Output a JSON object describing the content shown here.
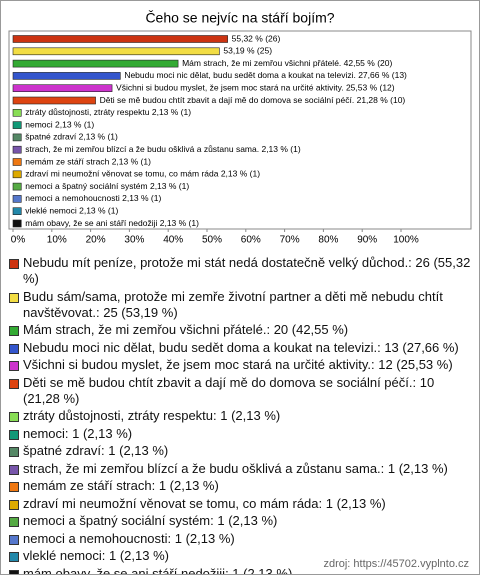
{
  "chart_data": {
    "type": "bar",
    "orientation": "horizontal",
    "title": "Čeho se nejvíc na stáří bojím?",
    "categories": [
      "Nebudu mít peníze, protože mi stát nedá dostatečně velký důchod.",
      "Budu sám/sama, protože mi zemře životní partner a děti mě nebudu chtít navštěvovat.",
      "Mám strach, že mi zemřou všichni přátelé.",
      "Nebudu moci nic dělat, budu sedět doma a koukat na televizi.",
      "Všichni si budou myslet, že jsem moc stará na určité aktivity.",
      "Děti se mě budou chtít zbavit a dají mě do domova se sociální péčí.",
      "ztráty důstojnosti, ztráty respektu",
      "nemoci",
      "špatné zdraví",
      "strach, že mi zemřou blízcí a že budu ošklivá a zůstanu sama.",
      "nemám ze stáří strach",
      "zdraví mi neumožní věnovat se tomu, co mám ráda",
      "nemoci a špatný sociální systém",
      "nemoci a nemohoucnosti",
      "vleklé nemoci",
      "mám obavy, že se ani stáří nedožiji"
    ],
    "values": [
      55.32,
      53.19,
      42.55,
      27.66,
      25.53,
      21.28,
      2.13,
      2.13,
      2.13,
      2.13,
      2.13,
      2.13,
      2.13,
      2.13,
      2.13,
      2.13
    ],
    "value_labels": [
      "55,32 % (26)",
      "53,19 % (25)",
      "Mám strach, že mi zemřou všichni přátelé. 42,55 % (20)",
      "Nebudu moci nic dělat, budu sedět doma a koukat na televizi. 27,66 % (13)",
      "Všichni si budou myslet, že jsem moc stará na určité aktivity. 25,53 % (12)",
      "Děti se mě budou chtít zbavit a dají mě do domova se sociální péčí. 21,28 % (10)",
      "ztráty důstojnosti, ztráty respektu 2,13 % (1)",
      "nemoci 2,13 % (1)",
      "špatné zdraví 2,13 % (1)",
      "strach, že mi zemřou blízcí a že budu ošklivá a zůstanu sama. 2,13 % (1)",
      "nemám ze stáří strach 2,13 % (1)",
      "zdraví mi neumožní věnovat se tomu, co mám ráda 2,13 % (1)",
      "nemoci a špatný sociální systém 2,13 % (1)",
      "nemoci a nemohoucnosti 2,13 % (1)",
      "vleklé nemoci 2,13 % (1)",
      "mám obavy, že se ani stáří nedožiji 2,13 % (1)"
    ],
    "legend_labels": [
      "Nebudu mít peníze, protože mi stát nedá dostatečně velký důchod.: 26 (55,32 %)",
      "Budu sám/sama, protože mi zemře životní partner a děti mě nebudu chtít navštěvovat.: 25 (53,19 %)",
      "Mám strach, že mi zemřou všichni přátelé.: 20 (42,55 %)",
      "Nebudu moci nic dělat, budu sedět doma a koukat na televizi.: 13 (27,66 %)",
      "Všichni si budou myslet, že jsem moc stará na určité aktivity.: 12 (25,53 %)",
      "Děti se mě budou chtít zbavit a dají mě do domova se sociální péčí.: 10 (21,28 %)",
      "ztráty důstojnosti, ztráty respektu: 1 (2,13 %)",
      "nemoci: 1 (2,13 %)",
      "špatné zdraví: 1 (2,13 %)",
      "strach, že mi zemřou blízcí a že budu ošklivá a zůstanu sama.: 1 (2,13 %)",
      "nemám ze stáří strach: 1 (2,13 %)",
      "zdraví mi neumožní věnovat se tomu, co mám ráda: 1 (2,13 %)",
      "nemoci a špatný sociální systém: 1 (2,13 %)",
      "nemoci a nemohoucnosti: 1 (2,13 %)",
      "vleklé nemoci: 1 (2,13 %)",
      "mám obavy, že se ani stáří nedožiji: 1 (2,13 %)"
    ],
    "colors": [
      "#cc3311",
      "#f2dd44",
      "#33aa33",
      "#3355cc",
      "#cc33cc",
      "#dd4411",
      "#88dd55",
      "#119977",
      "#558866",
      "#7755aa",
      "#ee7711",
      "#ddaa00",
      "#55aa44",
      "#5577cc",
      "#2288aa",
      "#111111"
    ],
    "xlim": [
      0,
      100
    ],
    "xticks": [
      {
        "value": 0,
        "label": "0%"
      },
      {
        "value": 10,
        "label": "10%"
      },
      {
        "value": 20,
        "label": "20%"
      },
      {
        "value": 30,
        "label": "30%"
      },
      {
        "value": 40,
        "label": "40%"
      },
      {
        "value": 50,
        "label": "50%"
      },
      {
        "value": 60,
        "label": "60%"
      },
      {
        "value": 70,
        "label": "70%"
      },
      {
        "value": 80,
        "label": "80%"
      },
      {
        "value": 90,
        "label": "90%"
      },
      {
        "value": 100,
        "label": "100%"
      }
    ],
    "source": "zdroj: https://45702.vyplnto.cz"
  }
}
